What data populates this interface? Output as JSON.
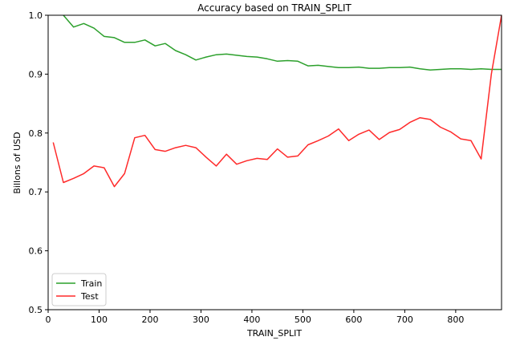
{
  "chart_data": {
    "type": "line",
    "title": "Accuracy based on TRAIN_SPLIT",
    "xlabel": "TRAIN_SPLIT",
    "ylabel": "Billons of USD",
    "xlim": [
      0,
      890
    ],
    "ylim": [
      0.5,
      1.0
    ],
    "x_ticks": [
      0,
      100,
      200,
      300,
      400,
      500,
      600,
      700,
      800
    ],
    "y_ticks": [
      0.5,
      0.6,
      0.7,
      0.8,
      0.9,
      1.0
    ],
    "legend_position": "lower-left",
    "grid": false,
    "series": [
      {
        "name": "Train",
        "color": "#2ca02c",
        "x": [
          10,
          30,
          50,
          70,
          90,
          110,
          130,
          150,
          170,
          190,
          210,
          230,
          250,
          270,
          290,
          310,
          330,
          350,
          370,
          390,
          410,
          430,
          450,
          470,
          490,
          510,
          530,
          550,
          570,
          590,
          610,
          630,
          650,
          670,
          690,
          710,
          730,
          750,
          770,
          790,
          810,
          830,
          850,
          870,
          890
        ],
        "values": [
          1.018,
          1.0,
          0.98,
          0.986,
          0.978,
          0.964,
          0.962,
          0.954,
          0.954,
          0.958,
          0.948,
          0.952,
          0.94,
          0.933,
          0.924,
          0.929,
          0.933,
          0.934,
          0.932,
          0.93,
          0.929,
          0.926,
          0.922,
          0.923,
          0.922,
          0.914,
          0.915,
          0.913,
          0.911,
          0.911,
          0.912,
          0.91,
          0.91,
          0.911,
          0.911,
          0.912,
          0.909,
          0.907,
          0.908,
          0.909,
          0.909,
          0.908,
          0.909,
          0.908,
          0.908
        ]
      },
      {
        "name": "Test",
        "color": "#ff2a2a",
        "x": [
          10,
          30,
          50,
          70,
          90,
          110,
          130,
          150,
          170,
          190,
          210,
          230,
          250,
          270,
          290,
          310,
          330,
          350,
          370,
          390,
          410,
          430,
          450,
          470,
          490,
          510,
          530,
          550,
          570,
          590,
          610,
          630,
          650,
          670,
          690,
          710,
          730,
          750,
          770,
          790,
          810,
          830,
          850,
          870,
          890
        ],
        "values": [
          0.784,
          0.716,
          0.723,
          0.731,
          0.744,
          0.741,
          0.709,
          0.731,
          0.792,
          0.796,
          0.772,
          0.769,
          0.775,
          0.779,
          0.775,
          0.759,
          0.744,
          0.764,
          0.747,
          0.753,
          0.757,
          0.755,
          0.773,
          0.759,
          0.761,
          0.78,
          0.787,
          0.795,
          0.807,
          0.787,
          0.798,
          0.805,
          0.789,
          0.801,
          0.806,
          0.818,
          0.826,
          0.823,
          0.81,
          0.802,
          0.79,
          0.787,
          0.756,
          0.9,
          1.0
        ]
      }
    ]
  }
}
